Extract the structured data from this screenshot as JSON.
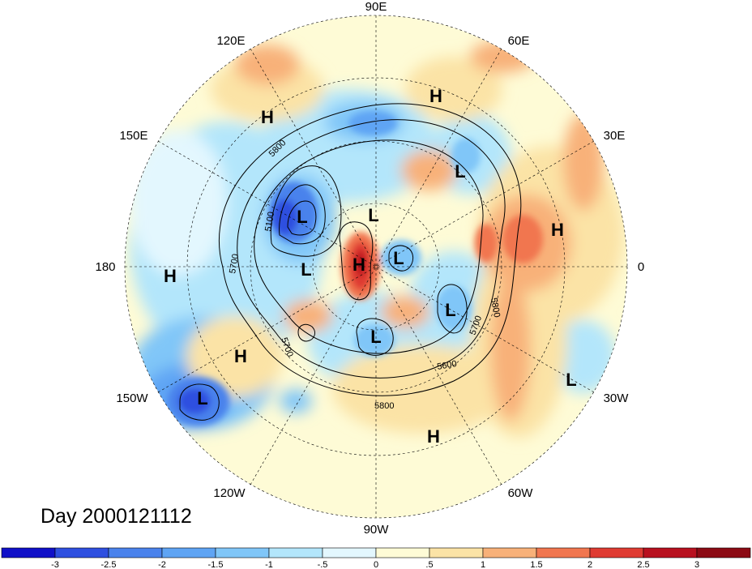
{
  "map": {
    "projection": "north-polar-stereographic",
    "longitude_labels": [
      "90E",
      "120E",
      "60E",
      "150E",
      "30E",
      "180",
      "0",
      "150W",
      "30W",
      "120W",
      "60W",
      "90W"
    ],
    "contour_labels": [
      "5800",
      "5100",
      "5700",
      "5800",
      "5700",
      "5700",
      "5600",
      "5800"
    ],
    "centers": [
      {
        "type": "H",
        "text": "H"
      },
      {
        "type": "H",
        "text": "H"
      },
      {
        "type": "L",
        "text": "L"
      },
      {
        "type": "L",
        "text": "L"
      },
      {
        "type": "L",
        "text": "L"
      },
      {
        "type": "H",
        "text": "H"
      },
      {
        "type": "H",
        "text": "H"
      },
      {
        "type": "L",
        "text": "L"
      },
      {
        "type": "H",
        "text": "H"
      },
      {
        "type": "L",
        "text": "L"
      },
      {
        "type": "L",
        "text": "L"
      },
      {
        "type": "L",
        "text": "L"
      },
      {
        "type": "H",
        "text": "H"
      },
      {
        "type": "L",
        "text": "L"
      },
      {
        "type": "L",
        "text": "L"
      },
      {
        "type": "H",
        "text": "H"
      }
    ],
    "day_label": "Day 2000121112"
  },
  "colorbar": {
    "ticks": [
      "-3",
      "-2.5",
      "-2",
      "-1.5",
      "-1",
      "-.5",
      "0",
      ".5",
      "1",
      "1.5",
      "2",
      "2.5",
      "3"
    ],
    "colors": [
      "#1010c8",
      "#2e4fe0",
      "#4a82ec",
      "#5fa4f4",
      "#80c6f8",
      "#b3e6fb",
      "#e3f7fe",
      "#fefbd6",
      "#fbe3a6",
      "#f8b179",
      "#f1764f",
      "#df3b32",
      "#b8101f",
      "#8c0a14"
    ]
  }
}
